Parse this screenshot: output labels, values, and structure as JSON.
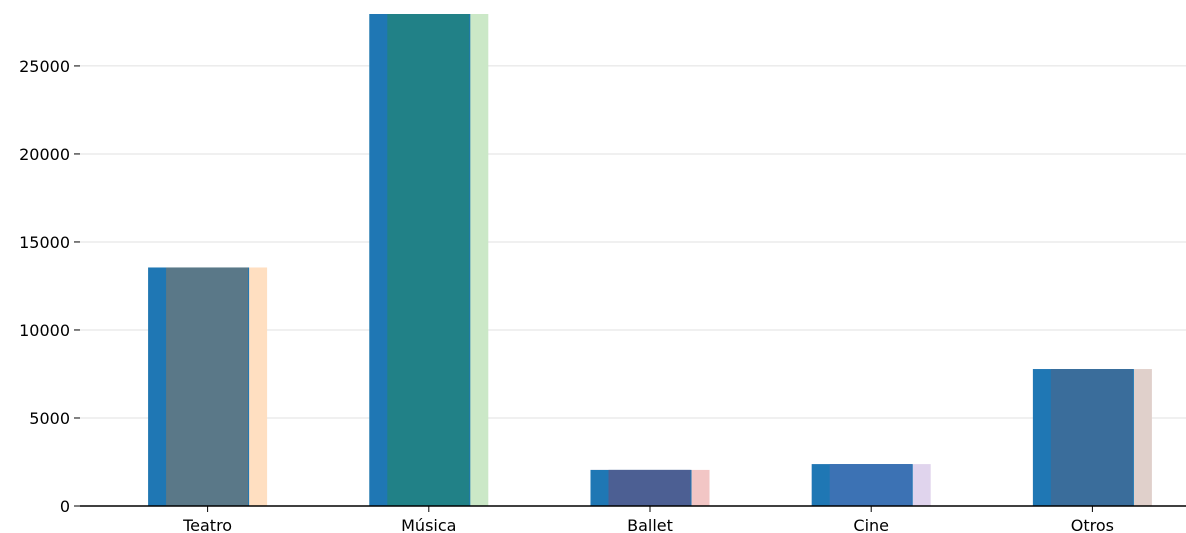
{
  "chart_data": {
    "type": "bar",
    "categories": [
      "Teatro",
      "Música",
      "Ballet",
      "Cine",
      "Otros"
    ],
    "values": [
      13550,
      27950,
      2050,
      2380,
      7780
    ],
    "ylim": [
      0,
      27950
    ],
    "yticks": [
      0,
      5000,
      10000,
      15000,
      20000,
      25000
    ],
    "ytick_labels": [
      "0",
      "5000",
      "10000",
      "15000",
      "20000",
      "25000"
    ],
    "grid": true,
    "colors": {
      "base_bar": "#1f77b4",
      "overlay_bars": [
        "#5a7888",
        "#218187",
        "#4c5f93",
        "#3c72b4",
        "#3a6d9b"
      ],
      "right_strips": [
        "#ffdfc1",
        "#cbe8c7",
        "#f2c6c5",
        "#e0d4ed",
        "#e0d0cb"
      ],
      "grid": "#e0e0e0",
      "axis": "#000000"
    }
  }
}
